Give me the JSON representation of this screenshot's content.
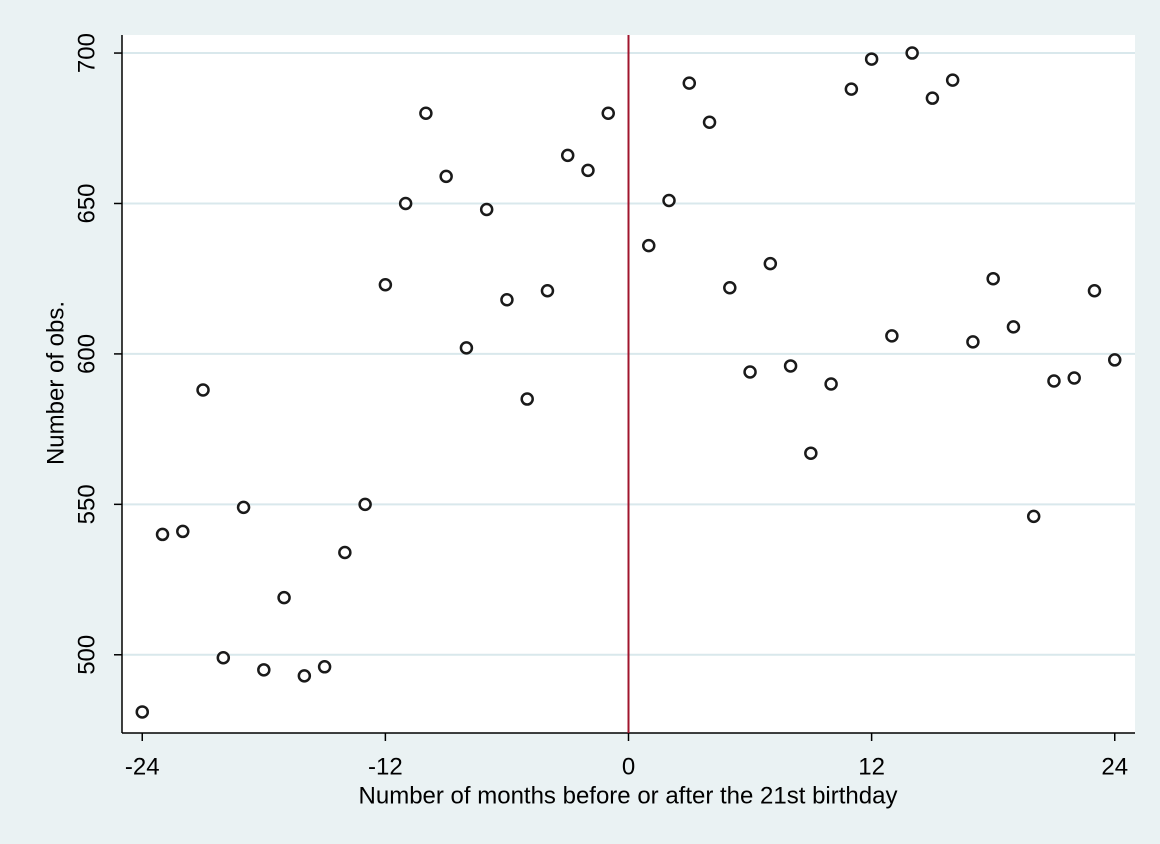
{
  "chart_data": {
    "type": "scatter",
    "xlabel": "Number of months before or after the 21st birthday",
    "ylabel": "Number of obs.",
    "x": [
      -24,
      -23,
      -22,
      -21,
      -20,
      -19,
      -18,
      -17,
      -16,
      -15,
      -14,
      -13,
      -12,
      -11,
      -10,
      -9,
      -8,
      -7,
      -6,
      -5,
      -4,
      -3,
      -2,
      -1,
      1,
      2,
      3,
      4,
      5,
      6,
      7,
      8,
      9,
      10,
      11,
      12,
      13,
      14,
      15,
      16,
      17,
      18,
      19,
      20,
      21,
      22,
      23,
      24
    ],
    "series": [
      {
        "color": "#1a1a1a",
        "values": [
          481,
          540,
          541,
          588,
          499,
          549,
          495,
          519,
          493,
          496,
          534,
          550,
          623,
          650,
          680,
          659,
          602,
          648,
          618,
          585,
          621,
          666,
          661,
          680,
          636,
          651,
          690,
          677,
          622,
          594,
          630,
          596,
          567,
          590,
          688,
          698,
          606,
          700,
          685,
          691,
          604,
          625,
          609,
          546,
          591,
          592,
          621,
          598
        ]
      }
    ],
    "xlim": [
      -25,
      25
    ],
    "ylim": [
      474,
      706
    ],
    "xticks": [
      -24,
      -12,
      0,
      12,
      24
    ],
    "yticks": [
      500,
      550,
      600,
      650,
      700
    ],
    "grid": true,
    "grid_color": "#d9e8ec",
    "reference_line": {
      "x": 0,
      "color": "#a0152d"
    }
  }
}
